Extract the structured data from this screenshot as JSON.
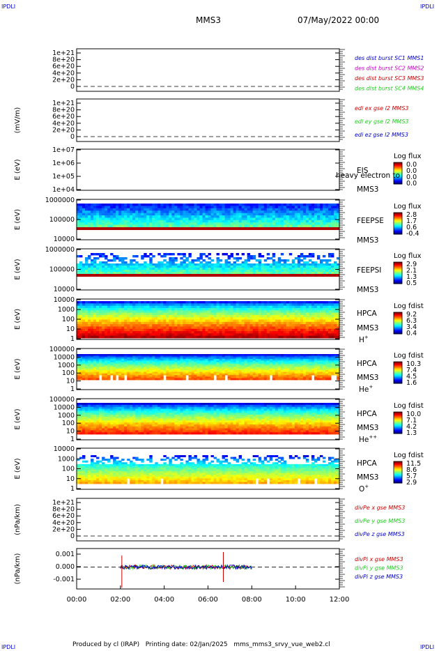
{
  "corner": {
    "tl": "IPDLI",
    "tr": "IPDLI",
    "bl": "IPDLI",
    "br": "IPDLI"
  },
  "header": {
    "mission": "MMS3",
    "date": "07/May/2022 00:00"
  },
  "footer": {
    "text": "Produced by cl (IRAP)   Printing date: 02/Jan/2025   mms_mms3_srvy_vue_web2.cl"
  },
  "colors": {
    "red": "#cc0000",
    "green": "#22cc22",
    "blue": "#0000cc",
    "magenta": "#cc00cc"
  },
  "chart_data": [
    {
      "type": "line",
      "id": "p1",
      "ylabel": "",
      "yticks": [
        "1e+21",
        "8e+20",
        "6e+20",
        "4e+20",
        "2e+20",
        "0"
      ],
      "series": [
        {
          "name": "des dist burst SC1 MMS1",
          "color": "#0000cc"
        },
        {
          "name": "des dist burst SC2 MMS2",
          "color": "#cc00cc"
        },
        {
          "name": "des dist burst SC3 MMS3",
          "color": "#cc0000"
        },
        {
          "name": "des dist burst SC4 MMS4",
          "color": "#22cc22"
        }
      ]
    },
    {
      "type": "line",
      "id": "p2",
      "ylabel": "(mV/m)",
      "yticks": [
        "1e+21",
        "8e+20",
        "6e+20",
        "4e+20",
        "2e+20",
        "0"
      ],
      "series": [
        {
          "name": "edi ex gse l2 MMS3",
          "color": "#cc0000"
        },
        {
          "name": "edi ey gse l2 MMS3",
          "color": "#22cc22"
        },
        {
          "name": "edi ez gse l2 MMS3",
          "color": "#0000cc"
        }
      ]
    },
    {
      "type": "heatmap",
      "id": "p3",
      "ylabel": "E (eV)",
      "yticks": [
        "1e+07",
        "1e+06",
        "1e+05",
        "1e+04"
      ],
      "inst": "EIS",
      "overlay": "heavy electron to",
      "sc": "MMS3",
      "cbar": {
        "title": "Log flux",
        "ticks": [
          "0.0",
          "0.0",
          "0.0",
          "0.0"
        ]
      }
    },
    {
      "type": "heatmap",
      "id": "p4",
      "ylabel": "E (eV)",
      "yticks": [
        "1000000",
        "100000",
        "10000"
      ],
      "inst": "FEEPSE",
      "sc": "MMS3",
      "cbar": {
        "title": "Log flux",
        "ticks": [
          "2.8",
          "1.7",
          "0.6",
          "-0.4"
        ]
      }
    },
    {
      "type": "heatmap",
      "id": "p5",
      "ylabel": "E (eV)",
      "yticks": [
        "1000000",
        "100000",
        "10000"
      ],
      "inst": "FEEPSI",
      "sc": "MMS3",
      "cbar": {
        "title": "Log flux",
        "ticks": [
          "2.9",
          "2.1",
          "1.3",
          "0.5"
        ]
      }
    },
    {
      "type": "heatmap",
      "id": "p6",
      "ylabel": "E (eV)",
      "yticks": [
        "10000",
        "1000",
        "100",
        "10",
        "1"
      ],
      "inst": "HPCA",
      "sc": "MMS3",
      "species": "H+",
      "cbar": {
        "title": "Log fdist",
        "ticks": [
          "9.2",
          "6.3",
          "3.4",
          "0.4"
        ]
      }
    },
    {
      "type": "heatmap",
      "id": "p7",
      "ylabel": "E (eV)",
      "yticks": [
        "100000",
        "10000",
        "1000",
        "100",
        "10",
        "1"
      ],
      "inst": "HPCA",
      "sc": "MMS3",
      "species": "He+",
      "cbar": {
        "title": "Log fdist",
        "ticks": [
          "10.3",
          "7.4",
          "4.5",
          "1.6"
        ]
      }
    },
    {
      "type": "heatmap",
      "id": "p8",
      "ylabel": "E (eV)",
      "yticks": [
        "100000",
        "10000",
        "1000",
        "100",
        "10",
        "1"
      ],
      "inst": "HPCA",
      "sc": "MMS3",
      "species": "He++",
      "cbar": {
        "title": "Log fdist",
        "ticks": [
          "10.0",
          "7.1",
          "4.2",
          "1.3"
        ]
      }
    },
    {
      "type": "heatmap",
      "id": "p9",
      "ylabel": "E (eV)",
      "yticks": [
        "10000",
        "1000",
        "100",
        "10",
        "1"
      ],
      "inst": "HPCA",
      "sc": "MMS3",
      "species": "O+",
      "cbar": {
        "title": "Log fdist",
        "ticks": [
          "11.5",
          "8.6",
          "5.7",
          "2.9"
        ]
      }
    },
    {
      "type": "line",
      "id": "p10",
      "ylabel": "(nPa/km)",
      "yticks": [
        "1e+21",
        "8e+20",
        "6e+20",
        "4e+20",
        "2e+20",
        "0"
      ],
      "series": [
        {
          "name": "divPe x gse MMS3",
          "color": "#cc0000"
        },
        {
          "name": "divPe y gse MMS3",
          "color": "#22cc22"
        },
        {
          "name": "divPe z gse MMS3",
          "color": "#0000cc"
        }
      ]
    },
    {
      "type": "line",
      "id": "p11",
      "ylabel": "(nPa/km)",
      "yticks": [
        "0.001",
        "0.000",
        "-0.001"
      ],
      "series": [
        {
          "name": "divPi x gse MMS3",
          "color": "#cc0000"
        },
        {
          "name": "divPi y gse MMS3",
          "color": "#22cc22"
        },
        {
          "name": "divPi z gse MMS3",
          "color": "#0000cc"
        }
      ]
    }
  ],
  "xaxis": {
    "ticks": [
      "00:00",
      "02:00",
      "04:00",
      "06:00",
      "08:00",
      "10:00",
      "12:00"
    ]
  }
}
